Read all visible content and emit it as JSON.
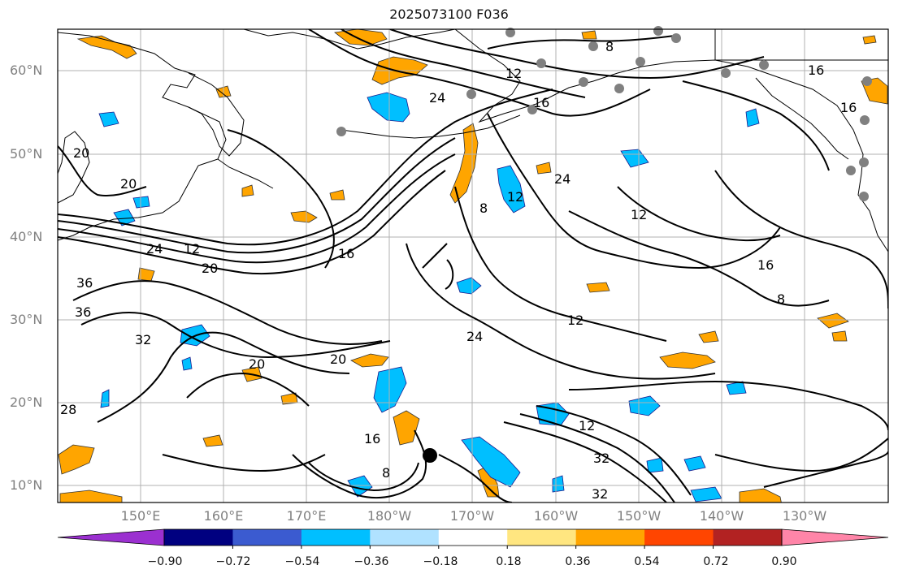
{
  "title": "2025073100 F036",
  "lat_labels": [
    "60°N",
    "50°N",
    "40°N",
    "30°N",
    "20°N",
    "10°N"
  ],
  "lon_labels": [
    "150°E",
    "160°E",
    "170°E",
    "180°W",
    "170°W",
    "160°W",
    "150°W",
    "140°W",
    "130°W"
  ],
  "colorbar": {
    "labels": [
      "−0.90",
      "−0.72",
      "−0.54",
      "−0.36",
      "−0.18",
      "0.18",
      "0.36",
      "0.54",
      "0.72",
      "0.90"
    ],
    "colors": [
      "#9b30d0",
      "#000080",
      "#3b5bd0",
      "#00bfff",
      "#b0e2ff",
      "#ffffff",
      "#ffe680",
      "#ffa500",
      "#ff4500",
      "#b22222",
      "#ff85a8"
    ]
  },
  "contour_labels": [
    "8",
    "12",
    "16",
    "24",
    "20",
    "24",
    "12",
    "20",
    "36",
    "36",
    "32",
    "20",
    "20",
    "24",
    "12",
    "16",
    "8",
    "12",
    "16",
    "8",
    "12",
    "24",
    "16",
    "32",
    "32",
    "12",
    "16",
    "8",
    "28",
    "20",
    "16"
  ],
  "colors": {
    "positive": "#ffa500",
    "positive_light": "#ffe680",
    "negative": "#00bfff",
    "negative_light": "#b0e2ff",
    "contour": "#000000",
    "grid": "#b0b0b0",
    "coast": "#000000",
    "station": "#808080"
  }
}
